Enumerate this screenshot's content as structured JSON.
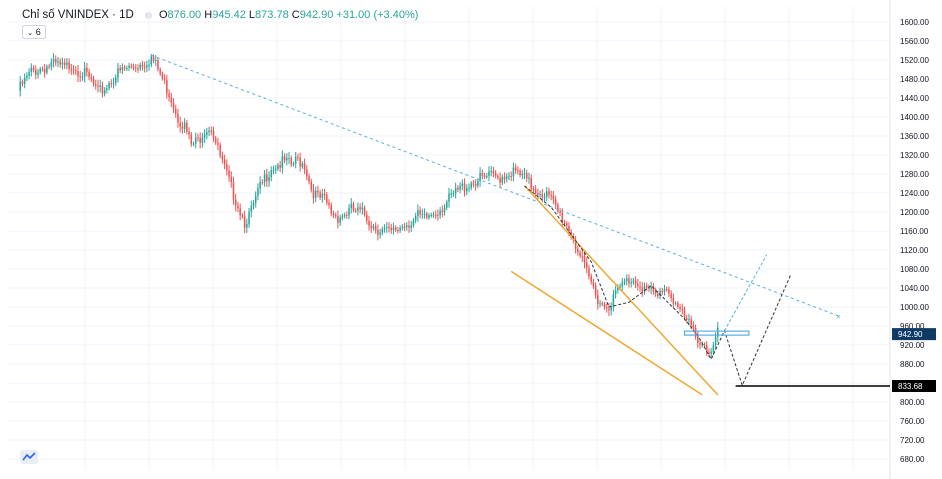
{
  "header": {
    "symbol": "Chỉ số VNINDEX · 1D",
    "ohlc": [
      {
        "k": "O",
        "v": "876.00"
      },
      {
        "k": "H",
        "v": "945.42"
      },
      {
        "k": "L",
        "v": "873.78"
      },
      {
        "k": "C",
        "v": "942.90"
      }
    ],
    "change": "+31.00 (+3.40%)",
    "indicator_badge": "6"
  },
  "colors": {
    "up": "#26a69a",
    "down": "#ef5350",
    "channel": "#f0a832",
    "trend": "#5aaee0",
    "projection_dark": "#333333",
    "support": "#000000",
    "price_label_bg": "#0d3b66"
  },
  "chart_data": {
    "type": "candlestick",
    "title": "Chỉ số VNINDEX",
    "interval": "1D",
    "y_axis": {
      "position": "right",
      "ylim": [
        660,
        1620
      ],
      "ticks": [
        680,
        720,
        760,
        800,
        840,
        880,
        920,
        960,
        1000,
        1040,
        1080,
        1120,
        1160,
        1200,
        1240,
        1280,
        1320,
        1360,
        1400,
        1440,
        1480,
        1520,
        1560,
        1600
      ],
      "tick_labels": [
        "680.00",
        "720.00",
        "760.00",
        "800.00",
        "840.00",
        "880.00",
        "920.00",
        "960.00",
        "1000.00",
        "1040.00",
        "1080.00",
        "1120.00",
        "1160.00",
        "1200.00",
        "1240.00",
        "1280.00",
        "1320.00",
        "1360.00",
        "1400.00",
        "1440.00",
        "1480.00",
        "1520.00",
        "1560.00",
        "1600.00"
      ]
    },
    "grid": true,
    "close_path": [
      [
        0,
        1455
      ],
      [
        3,
        1475
      ],
      [
        6,
        1495
      ],
      [
        9,
        1500
      ],
      [
        12,
        1505
      ],
      [
        15,
        1510
      ],
      [
        18,
        1508
      ],
      [
        21,
        1502
      ],
      [
        24,
        1512
      ],
      [
        27,
        1500
      ],
      [
        30,
        1490
      ],
      [
        33,
        1475
      ],
      [
        36,
        1450
      ],
      [
        39,
        1460
      ],
      [
        42,
        1478
      ],
      [
        45,
        1492
      ],
      [
        48,
        1500
      ],
      [
        51,
        1505
      ],
      [
        54,
        1510
      ],
      [
        57,
        1515
      ],
      [
        60,
        1525
      ],
      [
        63,
        1500
      ],
      [
        66,
        1470
      ],
      [
        69,
        1440
      ],
      [
        72,
        1400
      ],
      [
        75,
        1380
      ],
      [
        78,
        1340
      ],
      [
        81,
        1350
      ],
      [
        84,
        1375
      ],
      [
        87,
        1380
      ],
      [
        90,
        1330
      ],
      [
        93,
        1290
      ],
      [
        96,
        1250
      ],
      [
        99,
        1215
      ],
      [
        102,
        1180
      ],
      [
        105,
        1200
      ],
      [
        108,
        1240
      ],
      [
        111,
        1270
      ],
      [
        114,
        1295
      ],
      [
        117,
        1300
      ],
      [
        120,
        1305
      ],
      [
        123,
        1298
      ],
      [
        126,
        1310
      ],
      [
        129,
        1300
      ],
      [
        132,
        1250
      ],
      [
        135,
        1230
      ],
      [
        138,
        1225
      ],
      [
        141,
        1200
      ],
      [
        144,
        1190
      ],
      [
        147,
        1195
      ],
      [
        150,
        1205
      ],
      [
        153,
        1200
      ],
      [
        156,
        1195
      ],
      [
        159,
        1175
      ],
      [
        162,
        1165
      ],
      [
        165,
        1160
      ],
      [
        168,
        1155
      ],
      [
        171,
        1165
      ],
      [
        174,
        1175
      ],
      [
        177,
        1180
      ],
      [
        180,
        1190
      ],
      [
        183,
        1185
      ],
      [
        186,
        1195
      ],
      [
        189,
        1205
      ],
      [
        192,
        1215
      ],
      [
        195,
        1230
      ],
      [
        198,
        1245
      ],
      [
        201,
        1255
      ],
      [
        204,
        1262
      ],
      [
        207,
        1267
      ],
      [
        210,
        1272
      ],
      [
        213,
        1275
      ],
      [
        216,
        1272
      ],
      [
        219,
        1278
      ],
      [
        222,
        1285
      ],
      [
        225,
        1280
      ],
      [
        228,
        1270
      ],
      [
        231,
        1255
      ],
      [
        234,
        1245
      ],
      [
        237,
        1240
      ],
      [
        240,
        1225
      ],
      [
        243,
        1200
      ],
      [
        246,
        1180
      ],
      [
        249,
        1155
      ],
      [
        252,
        1120
      ],
      [
        255,
        1080
      ],
      [
        258,
        1050
      ],
      [
        261,
        1020
      ],
      [
        264,
        1000
      ],
      [
        267,
        1010
      ],
      [
        270,
        1035
      ],
      [
        273,
        1050
      ],
      [
        276,
        1060
      ],
      [
        279,
        1055
      ],
      [
        282,
        1040
      ],
      [
        285,
        1030
      ],
      [
        288,
        1020
      ],
      [
        291,
        1045
      ],
      [
        294,
        1025
      ],
      [
        297,
        1000
      ],
      [
        300,
        975
      ],
      [
        303,
        955
      ],
      [
        306,
        935
      ],
      [
        309,
        920
      ],
      [
        312,
        900
      ],
      [
        315,
        943
      ]
    ],
    "total_bars": 316,
    "annotations": {
      "last_price": {
        "value": 942.9,
        "label": "942.90"
      },
      "support": {
        "value": 833.68,
        "label": "833.68"
      },
      "long_trendline": {
        "from": [
          60,
          1530
        ],
        "to": [
          370,
          980
        ]
      },
      "channel_upper": {
        "from": [
          228,
          1255
        ],
        "to": [
          315,
          815
        ]
      },
      "channel_lower": {
        "from": [
          222,
          1075
        ],
        "to": [
          308,
          815
        ]
      },
      "zigzag_dark": [
        [
          228,
          1255
        ],
        [
          240,
          1210
        ],
        [
          258,
          1095
        ],
        [
          266,
          1000
        ],
        [
          275,
          1010
        ],
        [
          285,
          1045
        ],
        [
          300,
          975
        ],
        [
          306,
          940
        ],
        [
          312,
          890
        ],
        [
          318,
          950
        ],
        [
          326,
          835
        ],
        [
          348,
          1070
        ]
      ],
      "projection_blue": [
        [
          318,
          950
        ],
        [
          337,
          1110
        ]
      ],
      "resistance_box": {
        "from_x": 300,
        "to_x": 329,
        "value": 945
      },
      "support_line": {
        "from_x": 323,
        "value": 833.68
      }
    }
  }
}
